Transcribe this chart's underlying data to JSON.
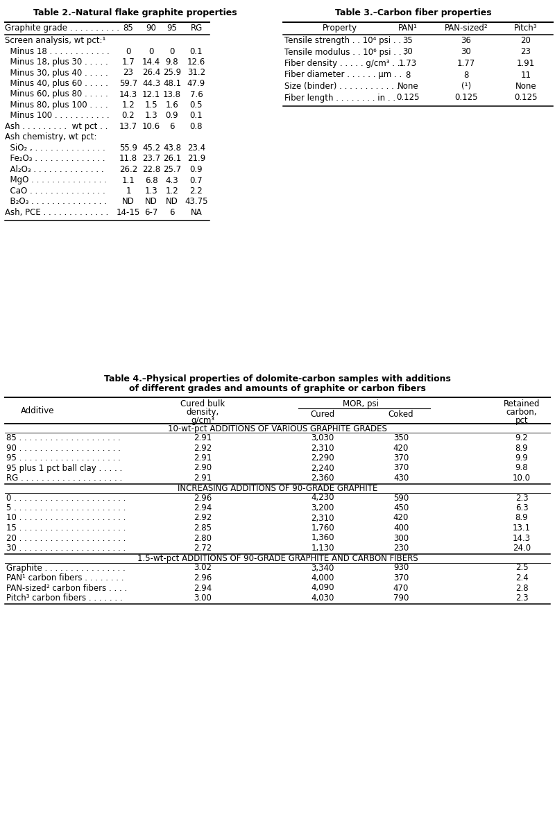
{
  "table2_title": "Table 2.–Natural flake graphite properties",
  "table3_title": "Table 3.–Carbon fiber properties",
  "table4_title_line1": "Table 4.–Physical properties of dolomite-carbon samples with additions",
  "table4_title_line2": "of different grades and amounts of graphite or carbon fibers",
  "t2_rows": [
    [
      "Graphite grade . . . . . . . . .",
      "85",
      "90",
      "95",
      "RG"
    ],
    [
      "Screen analysis, wt pct:¹",
      "",
      "",
      "",
      ""
    ],
    [
      "  Minus 18 . . . . . . . . . . . .",
      "0",
      "0",
      "0",
      "0.1"
    ],
    [
      "  Minus 18, plus 30 . . . . .",
      "1.7",
      "14.4",
      "9.8",
      "12.6"
    ],
    [
      "  Minus 30, plus 40 . . . . .",
      "23",
      "26.4",
      "25.9",
      "31.2"
    ],
    [
      "  Minus 40, plus 60 . . . . .",
      "59.7",
      "44.3",
      "48.1",
      "47.9"
    ],
    [
      "  Minus 60, plus 80 . . . . .",
      "14.3",
      "12.1",
      "13.8",
      "7.6"
    ],
    [
      "  Minus 80, plus 100 . . . .",
      "1.2",
      "1.5",
      "1.6",
      "0.5"
    ],
    [
      "  Minus 100 . . . . . . . . . . .",
      "0.2",
      "1.3",
      "0.9",
      "0.1"
    ],
    [
      "Ash . . . . . . . . .  wt pct . .",
      "13.7",
      "10.6",
      "6",
      "0.8"
    ],
    [
      "Ash chemistry, wt pct:",
      "",
      "",
      "",
      ""
    ],
    [
      "  SiO₂ , . . . . . . . . . . . . . .",
      "55.9",
      "45.2",
      "43.8",
      "23.4"
    ],
    [
      "  Fe₂O₃ . . . . . . . . . . . . . .",
      "11.8",
      "23.7",
      "26.1",
      "21.9"
    ],
    [
      "  Al₂O₃ . . . . . . . . . . . . . .",
      "26.2",
      "22.8",
      "25.7",
      "0.9"
    ],
    [
      "  MgO . . . . . . . . . . . . . . .",
      "1.1",
      "6.8",
      "4.3",
      "0.7"
    ],
    [
      "  CaO . . . . . . . . . . . . . . .",
      "1",
      "1.3",
      "1.2",
      "2.2"
    ],
    [
      "  B₂O₃ . . . . . . . . . . . . . . .",
      "ND",
      "ND",
      "ND",
      "43.75"
    ],
    [
      "Ash, PCE . . . . . . . . . . . . .",
      "14-15",
      "6-7",
      "6",
      "NA"
    ]
  ],
  "t3_rows": [
    [
      "Property",
      "PAN¹",
      "PAN-sized²",
      "Pitch³"
    ],
    [
      "Tensile strength . . 10⁴ psi . . .",
      "35",
      "36",
      "20"
    ],
    [
      "Tensile modulus . . 10⁶ psi . . .",
      "30",
      "30",
      "23"
    ],
    [
      "Fiber density . . . . . g/cm³ . .",
      "1.73",
      "1.77",
      "1.91"
    ],
    [
      "Fiber diameter . . . . . . μm . .",
      "8",
      "8",
      "11"
    ],
    [
      "Size (binder) . . . . . . . . . . . .",
      "None",
      "(¹)",
      "None"
    ],
    [
      "Fiber length . . . . . . . . in . .",
      "0.125",
      "0.125",
      "0.125"
    ]
  ],
  "t4_sec1_header": "10-wt-pct ADDITIONS OF VARIOUS GRAPHITE GRADES",
  "t4_sec1_rows": [
    [
      "85 . . . . . . . . . . . . . . . . . . . .",
      "2.91",
      "3,030",
      "350",
      "9.2"
    ],
    [
      "90 . . . . . . . . . . . . . . . . . . . .",
      "2.92",
      "2,310",
      "420",
      "8.9"
    ],
    [
      "95 . . . . . . . . . . . . . . . . . . . .",
      "2.91",
      "2,290",
      "370",
      "9.9"
    ],
    [
      "95 plus 1 pct ball clay . . . . .",
      "2.90",
      "2,240",
      "370",
      "9.8"
    ],
    [
      "RG . . . . . . . . . . . . . . . . . . . .",
      "2.91",
      "2,360",
      "430",
      "10.0"
    ]
  ],
  "t4_sec2_header": "INCREASING ADDITIONS OF 90-GRADE GRAPHITE",
  "t4_sec2_rows": [
    [
      "0 . . . . . . . . . . . . . . . . . . . . . .",
      "2.96",
      "4,230",
      "590",
      "2.3"
    ],
    [
      "5 . . . . . . . . . . . . . . . . . . . . . .",
      "2.94",
      "3,200",
      "450",
      "6.3"
    ],
    [
      "10 . . . . . . . . . . . . . . . . . . . . .",
      "2.92",
      "2,310",
      "420",
      "8.9"
    ],
    [
      "15 . . . . . . . . . . . . . . . . . . . . .",
      "2.85",
      "1,760",
      "400",
      "13.1"
    ],
    [
      "20 . . . . . . . . . . . . . . . . . . . . .",
      "2.80",
      "1,360",
      "300",
      "14.3"
    ],
    [
      "30 . . . . . . . . . . . . . . . . . . . . .",
      "2.72",
      "1,130",
      "230",
      "24.0"
    ]
  ],
  "t4_sec3_header": "1.5-wt-pct ADDITIONS OF 90-GRADE GRAPHITE AND CARBON FIBERS",
  "t4_sec3_rows": [
    [
      "Graphite . . . . . . . . . . . . . . . .",
      "3.02",
      "3,340",
      "930",
      "2.5"
    ],
    [
      "PAN¹ carbon fibers . . . . . . . .",
      "2.96",
      "4,000",
      "370",
      "2.4"
    ],
    [
      "PAN-sized² carbon fibers . . . .",
      "2.94",
      "4,090",
      "470",
      "2.8"
    ],
    [
      "Pitch³ carbon fibers . . . . . . .",
      "3.00",
      "4,030",
      "790",
      "2.3"
    ]
  ]
}
